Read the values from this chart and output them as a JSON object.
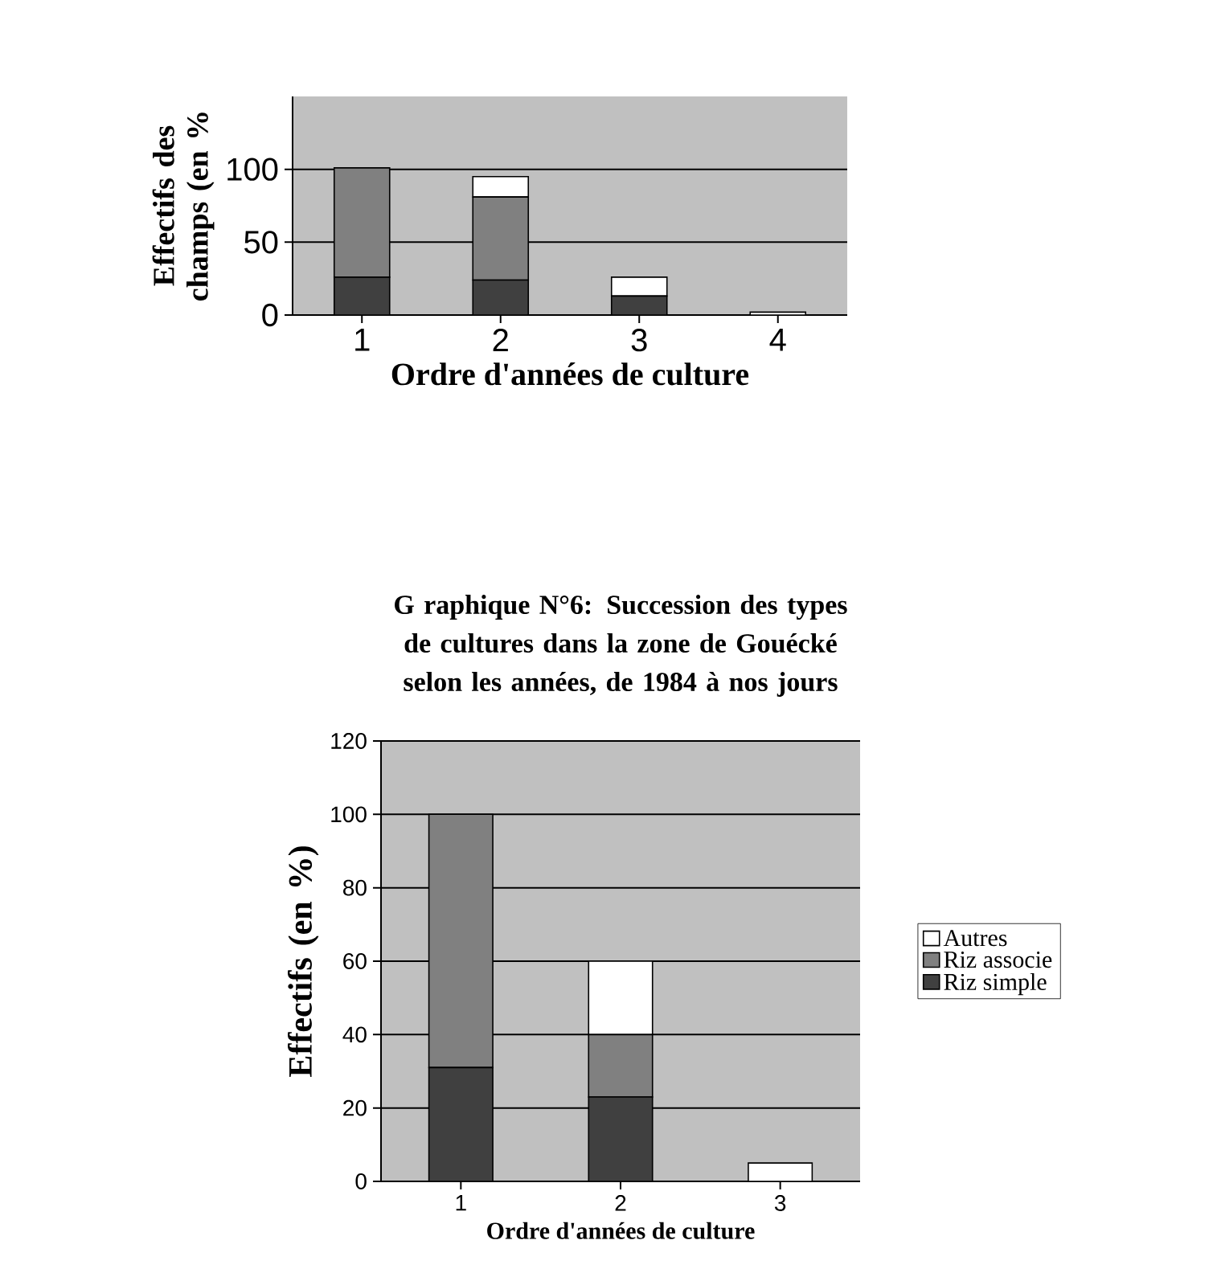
{
  "chart_data": [
    {
      "type": "bar",
      "stacked": true,
      "ylabel": "Effectifs des champs (en %",
      "xlabel": "Ordre d'années de culture",
      "categories": [
        "1",
        "2",
        "3",
        "4"
      ],
      "ylim": [
        0,
        150
      ],
      "yticks": [
        0,
        50,
        100
      ],
      "grid": "y",
      "series": [
        {
          "color": "#404040",
          "values": [
            26,
            24,
            13,
            0
          ]
        },
        {
          "color": "#808080",
          "values": [
            75,
            57,
            0,
            0
          ]
        },
        {
          "color": "#ffffff",
          "values": [
            0,
            14,
            13,
            2
          ]
        }
      ]
    },
    {
      "type": "bar",
      "stacked": true,
      "title": "G raphique N°6: Succession des types de cultures dans la zone de Gouécké selon les années, de 1984 à nos jours",
      "ylabel": "Effectifs (en %)",
      "xlabel": "Ordre d'années de culture",
      "categories": [
        "1",
        "2",
        "3"
      ],
      "ylim": [
        0,
        120
      ],
      "yticks": [
        0,
        20,
        40,
        60,
        80,
        100,
        120
      ],
      "grid": "y",
      "legend": "right",
      "series": [
        {
          "name": "Riz simple",
          "color": "#404040",
          "values": [
            31,
            23,
            0
          ]
        },
        {
          "name": "Riz associe",
          "color": "#808080",
          "values": [
            69,
            17,
            0
          ]
        },
        {
          "name": "Autres",
          "color": "#ffffff",
          "values": [
            0,
            20,
            5
          ]
        }
      ]
    }
  ]
}
